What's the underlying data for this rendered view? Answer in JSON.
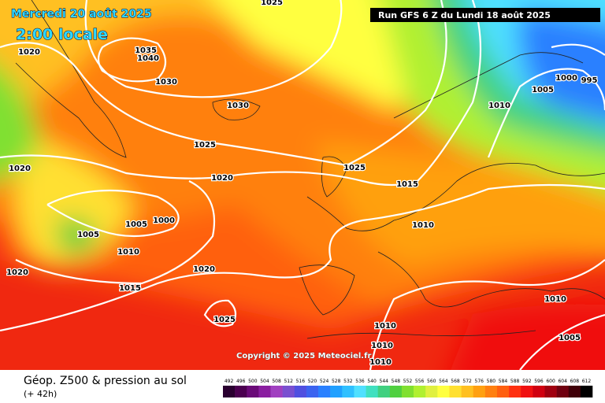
{
  "header": {
    "date": "Mercredi 20 août 2025",
    "local_time": "2:00 locale",
    "run": "Run GFS 6 Z du Lundi 18 août 2025"
  },
  "copyright": "Copyright © 2025 Meteociel.fr",
  "isobar_labels": [
    "1025",
    "1020",
    "1035",
    "1040",
    "1030",
    "1030",
    "1025",
    "1020",
    "1025",
    "1020",
    "1015",
    "1000",
    "1005",
    "1005",
    "1010",
    "1010",
    "1020",
    "1020",
    "1015",
    "1025",
    "1010",
    "1010",
    "1010",
    "1010",
    "1005",
    "1010",
    "1005",
    "1000",
    "995"
  ],
  "legend": {
    "title": "Géop. Z500 & pression au sol",
    "lead_time": "(+ 42h)",
    "labels": [
      492,
      496,
      500,
      504,
      508,
      512,
      516,
      520,
      524,
      528,
      532,
      536,
      540,
      544,
      548,
      552,
      556,
      560,
      564,
      568,
      572,
      576,
      580,
      584,
      588,
      592,
      596,
      600,
      604,
      608,
      612
    ],
    "colors": [
      "#2a0030",
      "#4b0050",
      "#6a0a78",
      "#8a1ea0",
      "#a040c0",
      "#7a50d0",
      "#5050e0",
      "#3c64f0",
      "#2a80ff",
      "#20a0ff",
      "#30c0ff",
      "#50e0ff",
      "#40e0c0",
      "#40d080",
      "#50d040",
      "#80e030",
      "#b0f030",
      "#e0f040",
      "#ffff40",
      "#ffe030",
      "#ffc020",
      "#ffa010",
      "#ff8010",
      "#ff6010",
      "#ff3010",
      "#f01010",
      "#d00010",
      "#a00010",
      "#700010",
      "#400008",
      "#000000"
    ]
  }
}
